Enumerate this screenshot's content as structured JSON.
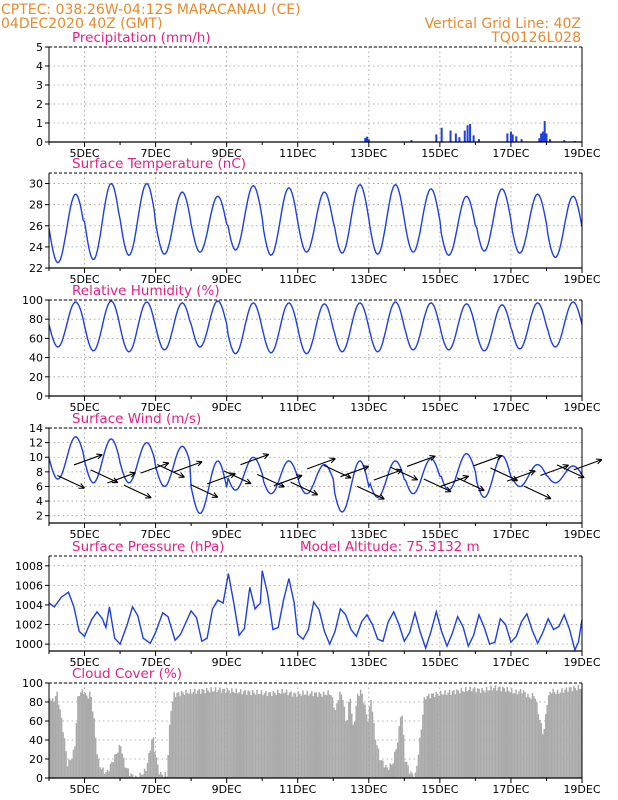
{
  "header": {
    "line1_left": "CPTEC:  038:26W-04:12S  MARACANAU (CE)",
    "line2_left": "04DEC2020 40Z (GMT)",
    "line2_right": "Vertical Grid Line: 40Z",
    "line3_right": "TQ0126L028"
  },
  "colors": {
    "line": "#1f3fe0",
    "bar": "#1f3fe0",
    "cloud": "#aaaaaa",
    "title": "#e0218a",
    "header": "#e88a2e"
  },
  "chart_data": [
    {
      "type": "bar",
      "title": "Precipitation (mm/h)",
      "ylim": [
        0,
        5
      ],
      "yticks": [
        0,
        1,
        2,
        3,
        4,
        5
      ],
      "xlabels": [
        "5DEC",
        "7DEC",
        "9DEC",
        "11DEC",
        "13DEC",
        "15DEC",
        "17DEC",
        "19DEC"
      ],
      "x_start_day": 4,
      "x_end_day": 19,
      "values_points": [
        [
          12.9,
          0.22
        ],
        [
          12.95,
          0.28
        ],
        [
          13.0,
          0.15
        ],
        [
          14.2,
          0.1
        ],
        [
          14.9,
          0.4
        ],
        [
          15.05,
          0.75
        ],
        [
          15.3,
          0.6
        ],
        [
          15.45,
          0.45
        ],
        [
          15.55,
          0.25
        ],
        [
          15.7,
          0.6
        ],
        [
          15.78,
          0.88
        ],
        [
          15.85,
          0.95
        ],
        [
          15.95,
          0.35
        ],
        [
          16.1,
          0.15
        ],
        [
          16.9,
          0.45
        ],
        [
          17.0,
          0.55
        ],
        [
          17.05,
          0.4
        ],
        [
          17.15,
          0.3
        ],
        [
          17.3,
          0.15
        ],
        [
          17.8,
          0.2
        ],
        [
          17.85,
          0.45
        ],
        [
          17.9,
          0.55
        ],
        [
          17.95,
          1.1
        ],
        [
          18.0,
          0.45
        ],
        [
          18.1,
          0.15
        ],
        [
          18.5,
          0.1
        ],
        [
          18.8,
          0.05
        ]
      ]
    },
    {
      "type": "line",
      "title": "Surface Temperature (nC)",
      "ylim": [
        22,
        31
      ],
      "yticks": [
        22,
        24,
        26,
        28,
        30
      ],
      "xlabels": [
        "5DEC",
        "7DEC",
        "9DEC",
        "11DEC",
        "13DEC",
        "15DEC",
        "17DEC",
        "19DEC"
      ],
      "x_start_day": 4,
      "x_end_day": 19,
      "daily_min": [
        22.5,
        22.8,
        23.2,
        23.3,
        23.5,
        23.7,
        23.2,
        23.5,
        23.4,
        23.3,
        23.5,
        23.2,
        23.6,
        23.4,
        23.0,
        23.2
      ],
      "daily_max": [
        29.0,
        30.0,
        30.0,
        29.2,
        28.8,
        29.8,
        29.6,
        29.2,
        29.9,
        29.9,
        29.5,
        28.8,
        29.5,
        29.0,
        28.8,
        29.2
      ]
    },
    {
      "type": "line",
      "title": "Relative Humidity (%)",
      "ylim": [
        0,
        100
      ],
      "yticks": [
        0,
        20,
        40,
        60,
        80,
        100
      ],
      "xlabels": [
        "5DEC",
        "7DEC",
        "9DEC",
        "11DEC",
        "13DEC",
        "15DEC",
        "17DEC",
        "19DEC"
      ],
      "x_start_day": 4,
      "x_end_day": 19,
      "daily_min": [
        51,
        47,
        46,
        48,
        51,
        44,
        45,
        44,
        46,
        46,
        48,
        48,
        47,
        49,
        51,
        52
      ],
      "daily_max": [
        98,
        99,
        98,
        97,
        99,
        97,
        97,
        96,
        97,
        98,
        97,
        96,
        95,
        97,
        98,
        97
      ]
    },
    {
      "type": "line",
      "title": "Surface Wind (m/s)",
      "ylim": [
        1,
        14
      ],
      "yticks": [
        2,
        4,
        6,
        8,
        10,
        12,
        14
      ],
      "xlabels": [
        "5DEC",
        "7DEC",
        "9DEC",
        "11DEC",
        "13DEC",
        "15DEC",
        "17DEC",
        "19DEC"
      ],
      "x_start_day": 4,
      "x_end_day": 19,
      "daily_min": [
        7.0,
        6.5,
        6.5,
        6.0,
        2.3,
        5.5,
        5.0,
        5.0,
        2.5,
        4.5,
        5.0,
        5.5,
        4.5,
        6.0,
        6.5,
        7.0
      ],
      "daily_max": [
        12.8,
        12.5,
        12.0,
        11.5,
        9.5,
        10.0,
        9.5,
        9.0,
        9.5,
        9.5,
        9.8,
        10.5,
        10.2,
        9.0,
        8.8,
        10.0
      ],
      "vector_count": 32
    },
    {
      "type": "line",
      "title": "Surface Pressure (hPa)",
      "annotation": "Model Altitude: 75.3132 m",
      "ylim": [
        999.3,
        1009
      ],
      "yticks": [
        1000,
        1002,
        1004,
        1006,
        1008
      ],
      "xlabels": [
        "5DEC",
        "7DEC",
        "9DEC",
        "11DEC",
        "13DEC",
        "15DEC",
        "17DEC",
        "19DEC"
      ],
      "x_start_day": 4,
      "x_end_day": 19,
      "points": [
        [
          4.0,
          1004.2
        ],
        [
          4.15,
          1003.8
        ],
        [
          4.35,
          1004.8
        ],
        [
          4.55,
          1005.3
        ],
        [
          4.7,
          1003.8
        ],
        [
          4.85,
          1001.3
        ],
        [
          5.0,
          1000.8
        ],
        [
          5.2,
          1002.5
        ],
        [
          5.35,
          1003.3
        ],
        [
          5.5,
          1002.6
        ],
        [
          5.6,
          1001.7
        ],
        [
          5.7,
          1003.8
        ],
        [
          5.85,
          1000.6
        ],
        [
          6.0,
          1000.0
        ],
        [
          6.2,
          1002.0
        ],
        [
          6.35,
          1003.8
        ],
        [
          6.5,
          1002.9
        ],
        [
          6.65,
          1000.6
        ],
        [
          6.85,
          1000.1
        ],
        [
          7.0,
          1001.2
        ],
        [
          7.2,
          1003.2
        ],
        [
          7.35,
          1002.8
        ],
        [
          7.55,
          1000.4
        ],
        [
          7.7,
          1001.0
        ],
        [
          7.85,
          1002.2
        ],
        [
          8.0,
          1003.4
        ],
        [
          8.15,
          1002.7
        ],
        [
          8.3,
          1000.3
        ],
        [
          8.45,
          1000.6
        ],
        [
          8.6,
          1003.6
        ],
        [
          8.75,
          1004.5
        ],
        [
          8.9,
          1004.2
        ],
        [
          9.05,
          1007.2
        ],
        [
          9.2,
          1004.2
        ],
        [
          9.35,
          1000.9
        ],
        [
          9.5,
          1001.6
        ],
        [
          9.65,
          1005.8
        ],
        [
          9.8,
          1003.6
        ],
        [
          9.95,
          1004.2
        ],
        [
          10.0,
          1007.5
        ],
        [
          10.15,
          1005.2
        ],
        [
          10.3,
          1001.5
        ],
        [
          10.45,
          1001.7
        ],
        [
          10.6,
          1004.5
        ],
        [
          10.75,
          1006.7
        ],
        [
          10.9,
          1004.2
        ],
        [
          11.0,
          1001.0
        ],
        [
          11.15,
          1000.5
        ],
        [
          11.3,
          1001.5
        ],
        [
          11.45,
          1004.3
        ],
        [
          11.6,
          1003.5
        ],
        [
          11.75,
          1001.3
        ],
        [
          11.9,
          1000.0
        ],
        [
          12.05,
          1001.3
        ],
        [
          12.2,
          1003.6
        ],
        [
          12.35,
          1003.0
        ],
        [
          12.5,
          1001.5
        ],
        [
          12.65,
          1000.8
        ],
        [
          12.8,
          1002.3
        ],
        [
          12.95,
          1003.0
        ],
        [
          13.1,
          1002.0
        ],
        [
          13.25,
          1000.5
        ],
        [
          13.4,
          1000.3
        ],
        [
          13.55,
          1002.3
        ],
        [
          13.7,
          1003.3
        ],
        [
          13.85,
          1002.0
        ],
        [
          14.0,
          1000.3
        ],
        [
          14.15,
          1001.2
        ],
        [
          14.3,
          1003.2
        ],
        [
          14.45,
          1001.2
        ],
        [
          14.6,
          999.6
        ],
        [
          14.75,
          1001.3
        ],
        [
          14.9,
          1003.3
        ],
        [
          15.05,
          1001.3
        ],
        [
          15.2,
          999.8
        ],
        [
          15.35,
          1001.1
        ],
        [
          15.5,
          1002.8
        ],
        [
          15.65,
          1001.8
        ],
        [
          15.8,
          999.8
        ],
        [
          15.95,
          1000.9
        ],
        [
          16.1,
          1003.0
        ],
        [
          16.25,
          1001.7
        ],
        [
          16.4,
          1000.0
        ],
        [
          16.55,
          1000.2
        ],
        [
          16.7,
          1002.6
        ],
        [
          16.85,
          1002.0
        ],
        [
          17.0,
          1000.2
        ],
        [
          17.15,
          1000.8
        ],
        [
          17.3,
          1002.3
        ],
        [
          17.45,
          1003.1
        ],
        [
          17.6,
          1001.4
        ],
        [
          17.75,
          1000.1
        ],
        [
          17.9,
          1001.2
        ],
        [
          18.05,
          1002.6
        ],
        [
          18.2,
          1001.5
        ],
        [
          18.35,
          1001.8
        ],
        [
          18.5,
          1003.0
        ],
        [
          18.65,
          1001.5
        ],
        [
          18.8,
          999.4
        ],
        [
          18.9,
          1000.2
        ],
        [
          19.0,
          1002.5
        ]
      ]
    },
    {
      "type": "bar",
      "title": "Cloud Cover (%)",
      "ylim": [
        0,
        100
      ],
      "yticks": [
        0,
        20,
        40,
        60,
        80,
        100
      ],
      "xlabels": [
        "5DEC",
        "7DEC",
        "9DEC",
        "11DEC",
        "13DEC",
        "15DEC",
        "17DEC",
        "19DEC"
      ],
      "x_start_day": 4,
      "x_end_day": 19,
      "envelope": [
        [
          4.0,
          85
        ],
        [
          4.1,
          80
        ],
        [
          4.2,
          90
        ],
        [
          4.3,
          70
        ],
        [
          4.4,
          45
        ],
        [
          4.5,
          15
        ],
        [
          4.6,
          20
        ],
        [
          4.7,
          30
        ],
        [
          4.8,
          88
        ],
        [
          4.95,
          92
        ],
        [
          5.05,
          85
        ],
        [
          5.15,
          90
        ],
        [
          5.25,
          60
        ],
        [
          5.35,
          20
        ],
        [
          5.45,
          10
        ],
        [
          5.6,
          5
        ],
        [
          5.8,
          20
        ],
        [
          6.0,
          35
        ],
        [
          6.1,
          15
        ],
        [
          6.25,
          5
        ],
        [
          6.4,
          0
        ],
        [
          6.55,
          3
        ],
        [
          6.7,
          8
        ],
        [
          6.8,
          25
        ],
        [
          6.9,
          45
        ],
        [
          7.0,
          20
        ],
        [
          7.1,
          4
        ],
        [
          7.3,
          3
        ],
        [
          7.4,
          70
        ],
        [
          7.5,
          88
        ],
        [
          7.8,
          90
        ],
        [
          8.3,
          92
        ],
        [
          8.8,
          93
        ],
        [
          9.3,
          91
        ],
        [
          9.8,
          90
        ],
        [
          10.2,
          89
        ],
        [
          10.6,
          91
        ],
        [
          10.9,
          88
        ],
        [
          11.1,
          89
        ],
        [
          11.4,
          89
        ],
        [
          11.7,
          88
        ],
        [
          11.9,
          90
        ],
        [
          12.05,
          70
        ],
        [
          12.15,
          90
        ],
        [
          12.25,
          85
        ],
        [
          12.35,
          55
        ],
        [
          12.45,
          88
        ],
        [
          12.55,
          50
        ],
        [
          12.65,
          85
        ],
        [
          12.75,
          92
        ],
        [
          12.85,
          80
        ],
        [
          12.95,
          60
        ],
        [
          13.05,
          85
        ],
        [
          13.15,
          45
        ],
        [
          13.3,
          20
        ],
        [
          13.5,
          10
        ],
        [
          13.65,
          15
        ],
        [
          13.8,
          40
        ],
        [
          13.9,
          75
        ],
        [
          14.0,
          20
        ],
        [
          14.15,
          5
        ],
        [
          14.3,
          3
        ],
        [
          14.45,
          50
        ],
        [
          14.55,
          85
        ],
        [
          14.8,
          88
        ],
        [
          15.2,
          90
        ],
        [
          15.6,
          92
        ],
        [
          15.9,
          94
        ],
        [
          16.2,
          92
        ],
        [
          16.5,
          95
        ],
        [
          16.8,
          94
        ],
        [
          17.1,
          90
        ],
        [
          17.3,
          92
        ],
        [
          17.5,
          85
        ],
        [
          17.65,
          88
        ],
        [
          17.8,
          60
        ],
        [
          17.9,
          45
        ],
        [
          18.0,
          80
        ],
        [
          18.1,
          92
        ],
        [
          18.3,
          90
        ],
        [
          18.6,
          94
        ],
        [
          18.9,
          95
        ],
        [
          19.0,
          95
        ]
      ]
    }
  ]
}
